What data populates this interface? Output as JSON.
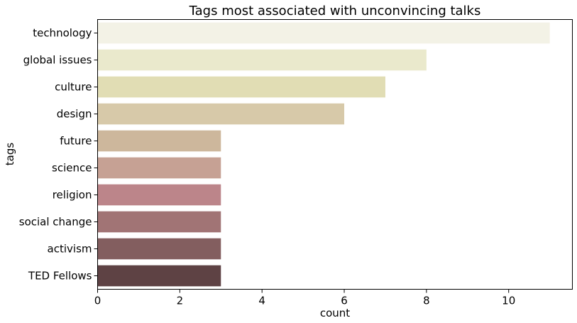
{
  "chart_data": {
    "type": "bar",
    "orientation": "horizontal",
    "title": "Tags most associated with unconvincing talks",
    "xlabel": "count",
    "ylabel": "tags",
    "categories": [
      "technology",
      "global issues",
      "culture",
      "design",
      "future",
      "science",
      "religion",
      "social change",
      "activism",
      "TED Fellows"
    ],
    "values": [
      11,
      8,
      7,
      6,
      3,
      3,
      3,
      3,
      3,
      3
    ],
    "xlim": [
      0,
      11.55
    ],
    "xticks": [
      0,
      2,
      4,
      6,
      8,
      10
    ],
    "grid": false,
    "legend": "none",
    "colors": [
      "#f3f2e6",
      "#eae9cc",
      "#e1ddb4",
      "#d7c9a9",
      "#cdb79c",
      "#c6a194",
      "#bc858a",
      "#a17475",
      "#835e5f",
      "#5e4244"
    ]
  }
}
